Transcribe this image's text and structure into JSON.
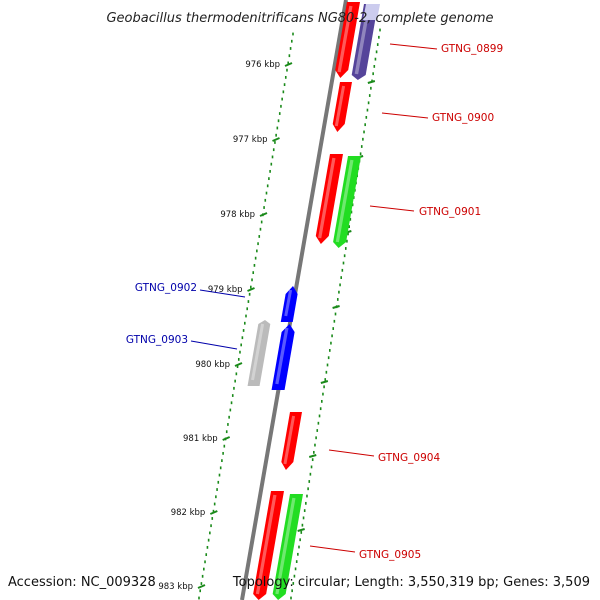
{
  "title": "Geobacillus thermodenitrificans NG80-2, complete genome",
  "accession_text": "Accession: NC_009328",
  "topology_text": "Topology: circular; Length: 3,550,319 bp; Genes: 3,509",
  "kbp_ticks": [
    "976 kbp",
    "977 kbp",
    "978 kbp",
    "979 kbp",
    "980 kbp",
    "981 kbp",
    "982 kbp",
    "983 kbp"
  ],
  "colors": {
    "backbone": "#777777",
    "tick": "#1a8a1a",
    "red": "#ff0000",
    "green": "#22dd22",
    "blue": "#0000ff",
    "gray": "#bbbbbb",
    "purple": "#55449a",
    "lavender": "#ccccee",
    "label_red": "#cc0000",
    "label_blue": "#0000aa"
  },
  "genes": [
    {
      "name": "GTNG_0899",
      "label_color": "#cc0000"
    },
    {
      "name": "GTNG_0900",
      "label_color": "#cc0000"
    },
    {
      "name": "GTNG_0901",
      "label_color": "#cc0000"
    },
    {
      "name": "GTNG_0902",
      "label_color": "#0000aa"
    },
    {
      "name": "GTNG_0903",
      "label_color": "#0000aa"
    },
    {
      "name": "GTNG_0904",
      "label_color": "#cc0000"
    },
    {
      "name": "GTNG_0905",
      "label_color": "#cc0000"
    }
  ]
}
